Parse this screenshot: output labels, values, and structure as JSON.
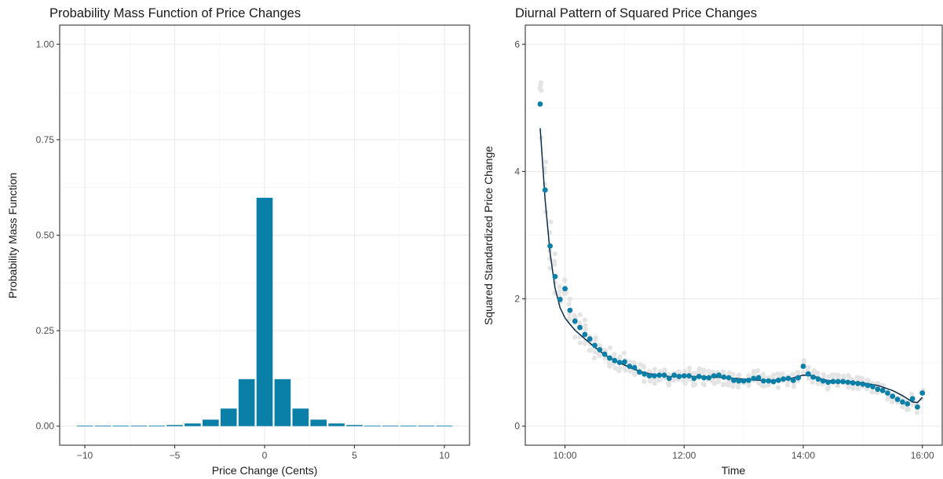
{
  "chart_data": [
    {
      "type": "bar",
      "title": "Probability Mass Function of Price Changes",
      "xlabel": "Price Change (Cents)",
      "ylabel": "Probability Mass Function",
      "xlim": [
        -11.4,
        11.4
      ],
      "ylim": [
        -0.05,
        1.05
      ],
      "xticks": [
        -10,
        -5,
        0,
        5,
        10
      ],
      "xtick_labels": [
        "−10",
        "−5",
        "0",
        "5",
        "10"
      ],
      "yticks": [
        0,
        0.25,
        0.5,
        0.75,
        1.0
      ],
      "ytick_labels": [
        "0.00",
        "0.25",
        "0.50",
        "0.75",
        "1.00"
      ],
      "grid": true,
      "color": "#0A7FA8",
      "x": [
        -10,
        -9,
        -8,
        -7,
        -6,
        -5,
        -4,
        -3,
        -2,
        -1,
        0,
        1,
        2,
        3,
        4,
        5,
        6,
        7,
        8,
        9,
        10
      ],
      "values": [
        0.001,
        0.001,
        0.001,
        0.001,
        0.001,
        0.003,
        0.007,
        0.017,
        0.046,
        0.123,
        0.598,
        0.123,
        0.046,
        0.017,
        0.007,
        0.003,
        0.001,
        0.001,
        0.001,
        0.001,
        0.001
      ]
    },
    {
      "type": "scatter",
      "title": "Diurnal Pattern of Squared Price Changes",
      "xlabel": "Time",
      "ylabel": "Squared Standardized Price Change",
      "xlim": [
        "09:20",
        "16:20"
      ],
      "ylim": [
        -0.3,
        6.3
      ],
      "xticks": [
        "10:00",
        "12:00",
        "14:00",
        "16:00"
      ],
      "yticks": [
        0,
        2,
        4,
        6
      ],
      "grid": true,
      "colors": {
        "mean_points": "#0A7FA8",
        "daily_points": "#E4E4E4",
        "smooth_line": "#0B2E4A"
      },
      "series": [
        {
          "role": "mean_points",
          "x": [
            "09:35",
            "09:40",
            "09:45",
            "09:50",
            "09:55",
            "10:00",
            "10:05",
            "10:10",
            "10:15",
            "10:20",
            "10:25",
            "10:30",
            "10:35",
            "10:40",
            "10:45",
            "10:50",
            "10:55",
            "11:00",
            "11:05",
            "11:10",
            "11:15",
            "11:20",
            "11:25",
            "11:30",
            "11:35",
            "11:40",
            "11:45",
            "11:50",
            "11:55",
            "12:00",
            "12:05",
            "12:10",
            "12:15",
            "12:20",
            "12:25",
            "12:30",
            "12:35",
            "12:40",
            "12:45",
            "12:50",
            "12:55",
            "13:00",
            "13:05",
            "13:10",
            "13:15",
            "13:20",
            "13:25",
            "13:30",
            "13:35",
            "13:40",
            "13:45",
            "13:50",
            "13:55",
            "14:00",
            "14:05",
            "14:10",
            "14:15",
            "14:20",
            "14:25",
            "14:30",
            "14:35",
            "14:40",
            "14:45",
            "14:50",
            "14:55",
            "15:00",
            "15:05",
            "15:10",
            "15:15",
            "15:20",
            "15:25",
            "15:30",
            "15:35",
            "15:40",
            "15:45",
            "15:50",
            "15:55",
            "16:00"
          ],
          "values": [
            5.06,
            3.71,
            2.83,
            2.35,
            1.99,
            2.16,
            1.82,
            1.65,
            1.55,
            1.44,
            1.37,
            1.27,
            1.2,
            1.13,
            1.07,
            1.03,
            1.0,
            1.01,
            0.94,
            0.92,
            0.85,
            0.82,
            0.79,
            0.79,
            0.8,
            0.8,
            0.75,
            0.8,
            0.78,
            0.79,
            0.79,
            0.75,
            0.78,
            0.76,
            0.76,
            0.79,
            0.8,
            0.77,
            0.76,
            0.72,
            0.71,
            0.71,
            0.72,
            0.75,
            0.76,
            0.71,
            0.71,
            0.7,
            0.72,
            0.74,
            0.75,
            0.72,
            0.76,
            0.94,
            0.82,
            0.77,
            0.74,
            0.71,
            0.69,
            0.7,
            0.7,
            0.7,
            0.69,
            0.68,
            0.67,
            0.66,
            0.64,
            0.62,
            0.58,
            0.56,
            0.52,
            0.47,
            0.42,
            0.38,
            0.35,
            0.43,
            0.3,
            0.52
          ]
        },
        {
          "role": "smooth_line",
          "x": [
            "09:35",
            "09:40",
            "09:45",
            "09:50",
            "09:55",
            "10:00",
            "10:05",
            "10:10",
            "10:20",
            "10:30",
            "10:40",
            "10:50",
            "11:00",
            "11:10",
            "11:20",
            "11:30",
            "11:45",
            "12:00",
            "12:15",
            "12:30",
            "12:45",
            "13:00",
            "13:15",
            "13:30",
            "13:45",
            "14:00",
            "14:10",
            "14:20",
            "14:30",
            "14:45",
            "15:00",
            "15:15",
            "15:30",
            "15:40",
            "15:50",
            "15:55",
            "16:00"
          ],
          "values": [
            4.68,
            3.55,
            2.72,
            2.17,
            1.86,
            1.7,
            1.6,
            1.51,
            1.37,
            1.24,
            1.12,
            1.03,
            0.96,
            0.89,
            0.84,
            0.81,
            0.78,
            0.78,
            0.78,
            0.77,
            0.76,
            0.74,
            0.72,
            0.72,
            0.74,
            0.8,
            0.79,
            0.73,
            0.71,
            0.7,
            0.68,
            0.64,
            0.56,
            0.48,
            0.38,
            0.37,
            0.45
          ]
        }
      ]
    }
  ]
}
